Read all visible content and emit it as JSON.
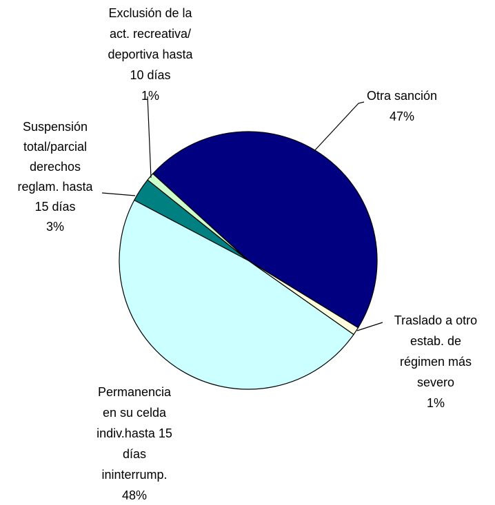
{
  "chart_data": {
    "type": "pie",
    "categories": [
      [
        "Otra sanción"
      ],
      [
        "Traslado a otro",
        "estab. de",
        "régimen más",
        "severo"
      ],
      [
        "Permanencia",
        "en su celda",
        "indiv.hasta 15",
        "días",
        "ininterrump."
      ],
      [
        "Suspensión",
        "total/parcial",
        "derechos",
        "reglam. hasta",
        "15 días"
      ],
      [
        "Exclusión de la",
        "act. recreativa/",
        "deportiva hasta",
        "10 días"
      ]
    ],
    "values": [
      47,
      1,
      48,
      3,
      1
    ],
    "value_labels": [
      "47%",
      "1%",
      "48%",
      "3%",
      "1%"
    ],
    "colors": [
      "#000080",
      "#ffffe0",
      "#ccffff",
      "#008080",
      "#ccffcc"
    ]
  }
}
